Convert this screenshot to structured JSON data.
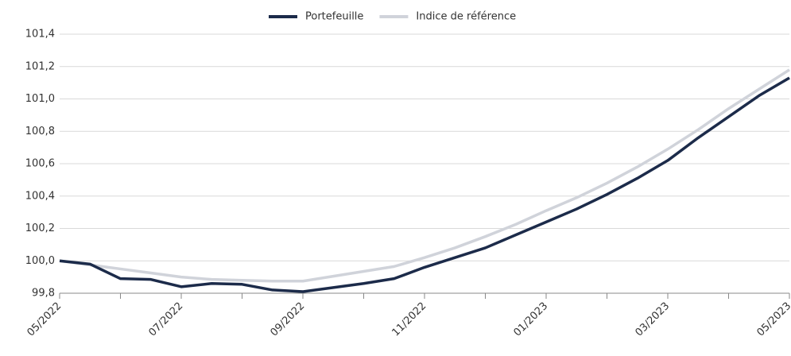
{
  "chart_data": {
    "type": "line",
    "categories": [
      "05/2022",
      null,
      null,
      null,
      "07/2022",
      null,
      null,
      null,
      "09/2022",
      null,
      null,
      null,
      "11/2022",
      null,
      null,
      null,
      "01/2023",
      null,
      null,
      null,
      "03/2023",
      null,
      null,
      null,
      "05/2023"
    ],
    "series": [
      {
        "name": "Portefeuille",
        "color": "#1c2b4a",
        "values": [
          100.0,
          99.98,
          99.89,
          99.885,
          99.84,
          99.86,
          99.855,
          99.82,
          99.81,
          99.835,
          99.86,
          99.89,
          99.96,
          100.02,
          100.08,
          100.16,
          100.24,
          100.32,
          100.41,
          100.51,
          100.62,
          100.76,
          100.89,
          101.02,
          101.13
        ]
      },
      {
        "name": "Indice de référence",
        "color": "#d0d3da",
        "values": [
          100.0,
          99.975,
          99.95,
          99.925,
          99.9,
          99.885,
          99.88,
          99.875,
          99.875,
          99.905,
          99.935,
          99.965,
          100.02,
          100.08,
          100.15,
          100.225,
          100.31,
          100.39,
          100.48,
          100.58,
          100.69,
          100.81,
          100.94,
          101.06,
          101.18
        ]
      }
    ],
    "ylim": [
      99.8,
      101.4
    ],
    "yticks": [
      {
        "value": 99.8,
        "label": "99,8"
      },
      {
        "value": 100.0,
        "label": "100,0"
      },
      {
        "value": 100.2,
        "label": "100,2"
      },
      {
        "value": 100.4,
        "label": "100,4"
      },
      {
        "value": 100.6,
        "label": "100,6"
      },
      {
        "value": 100.8,
        "label": "100,8"
      },
      {
        "value": 101.0,
        "label": "101,0"
      },
      {
        "value": 101.2,
        "label": "101,2"
      },
      {
        "value": 101.4,
        "label": "101,4"
      }
    ],
    "grid": true,
    "legend": "top"
  }
}
